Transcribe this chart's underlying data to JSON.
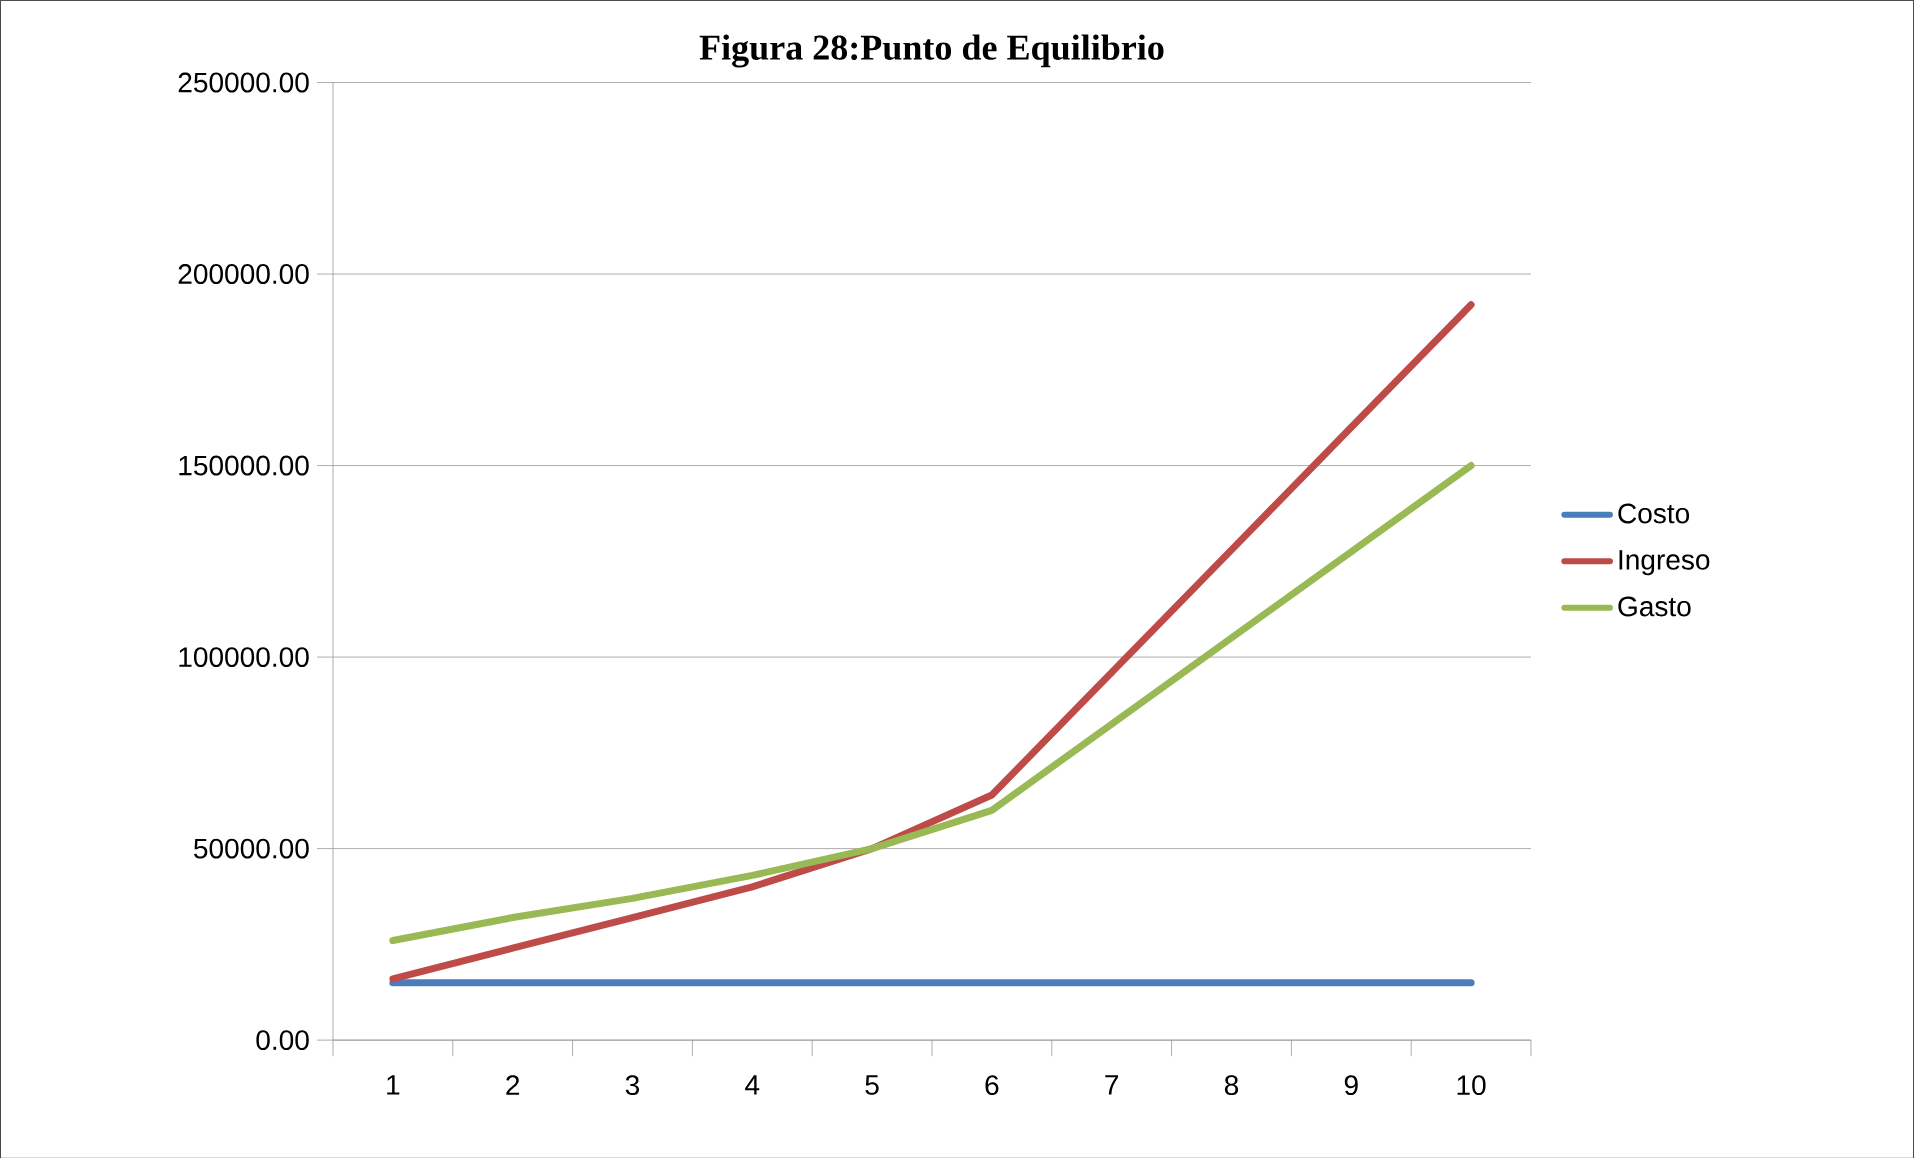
{
  "chart_data": {
    "type": "line",
    "title": "Figura 28:Punto de Equilibrio",
    "categories": [
      "1",
      "2",
      "3",
      "4",
      "5",
      "6",
      "7",
      "8",
      "9",
      "10"
    ],
    "series": [
      {
        "name": "Costo",
        "color": "#4a7ebb",
        "values": [
          15000,
          15000,
          15000,
          15000,
          15000,
          15000,
          15000,
          15000,
          15000,
          15000
        ]
      },
      {
        "name": "Ingreso",
        "color": "#be4b48",
        "values": [
          16000,
          24000,
          32000,
          40000,
          50000,
          64000,
          96000,
          128000,
          160000,
          192000
        ]
      },
      {
        "name": "Gasto",
        "color": "#98b954",
        "values": [
          26000,
          32000,
          37000,
          43000,
          50000,
          60000,
          82500,
          105000,
          127500,
          150000
        ]
      }
    ],
    "ylim": [
      0,
      250000
    ],
    "yticks": [
      {
        "value": 0,
        "label": "0.00"
      },
      {
        "value": 50000,
        "label": "50000.00"
      },
      {
        "value": 100000,
        "label": "100000.00"
      },
      {
        "value": 150000,
        "label": "150000.00"
      },
      {
        "value": 200000,
        "label": "200000.00"
      },
      {
        "value": 250000,
        "label": "250000.00"
      }
    ],
    "grid": "y",
    "legend": "right",
    "marker": "none",
    "line_style": "solid"
  }
}
